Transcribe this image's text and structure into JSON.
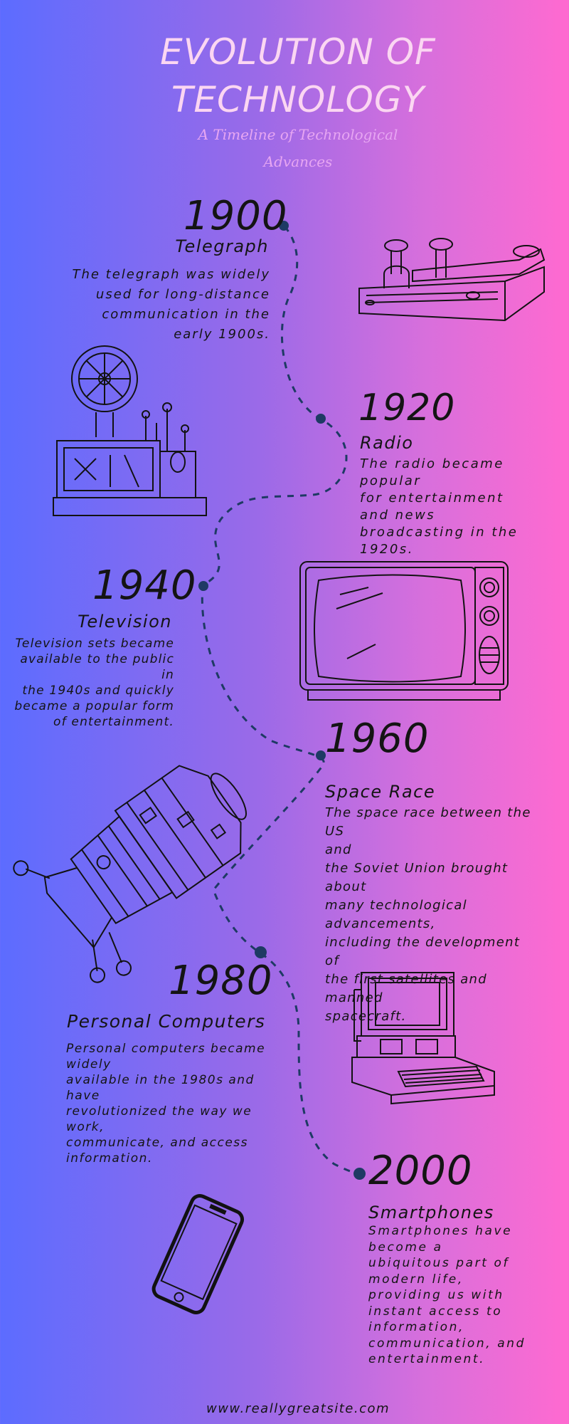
{
  "header": {
    "title_line1": "EVOLUTION OF",
    "title_line2": "TECHNOLOGY",
    "subtitle_line1": "A Timeline of Technological",
    "subtitle_line2": "Advances"
  },
  "timeline": [
    {
      "year": "1900",
      "heading": "Telegraph",
      "description_lines": [
        "The telegraph was widely",
        "used for long-distance",
        "communication in the",
        "early 1900s."
      ]
    },
    {
      "year": "1920",
      "heading": "Radio",
      "description_lines": [
        "The radio became",
        "popular",
        "for entertainment",
        "and news",
        "broadcasting in the",
        "1920s."
      ]
    },
    {
      "year": "1940",
      "heading": "Television",
      "description_lines": [
        "Television sets became",
        "available to the public in",
        "the 1940s and quickly",
        "became a popular form",
        "of entertainment."
      ]
    },
    {
      "year": "1960",
      "heading": "Space Race",
      "description_lines": [
        "The space race between the US",
        "and",
        "the Soviet Union brought about",
        "many technological",
        "advancements,",
        "including the development of",
        "the first satellites and manned",
        "spacecraft."
      ]
    },
    {
      "year": "1980",
      "heading": "Personal Computers",
      "description_lines": [
        "Personal computers became",
        "widely",
        "available in the 1980s and",
        "have",
        "revolutionized the way we",
        "work,",
        "communicate, and access",
        "information."
      ]
    },
    {
      "year": "2000",
      "heading": "Smartphones",
      "description_lines": [
        "Smartphones have",
        "become a",
        "ubiquitous part of",
        "modern life,",
        "providing us with",
        "instant access to",
        "information,",
        "communication, and",
        "entertainment."
      ]
    }
  ],
  "footer": {
    "website": "www.reallygreatsite.com"
  },
  "colors": {
    "gradient_left": "#5c6cff",
    "gradient_right": "#ff6ad0",
    "timeline_line": "#1e3a64",
    "title_color": "#fbd6f2"
  },
  "illustrations": [
    "telegraph-key-icon",
    "film-projector-telegraph-icon",
    "television-icon",
    "space-capsule-icon",
    "personal-computer-icon",
    "smartphone-icon"
  ]
}
